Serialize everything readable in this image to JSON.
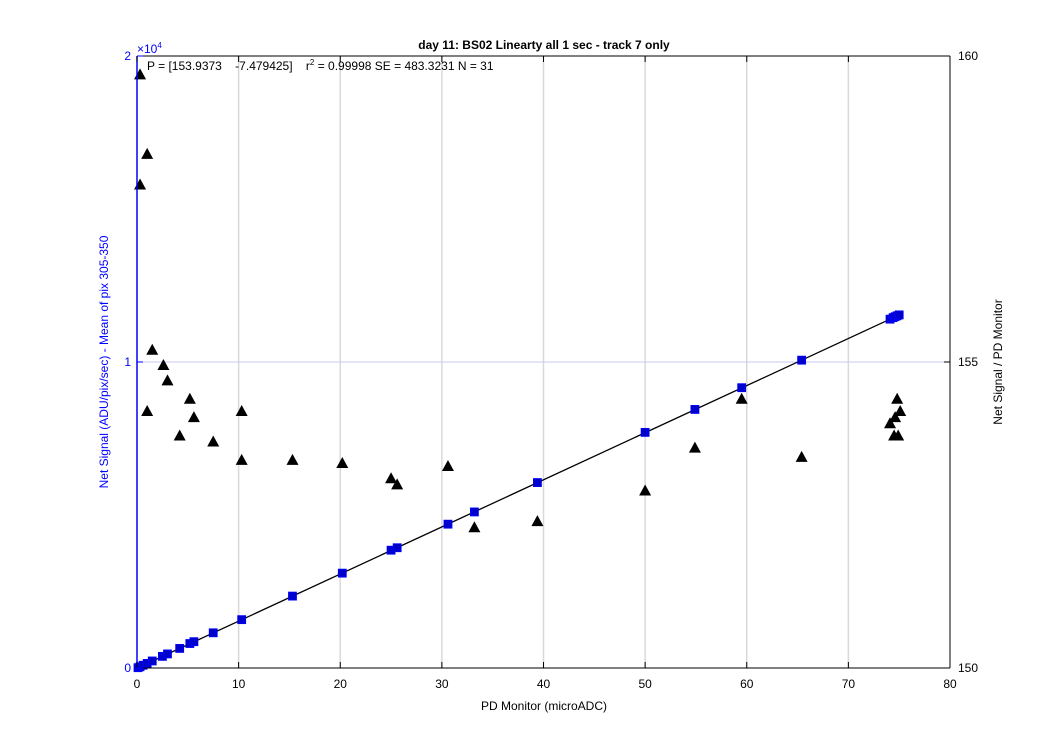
{
  "chart_data": {
    "type": "scatter",
    "title": "day 11: BS02   Linearty all 1 sec - track 7 only",
    "annotation": {
      "p_text": "P = [153.9373    -7.479425]",
      "r_prefix": "r",
      "r_exp": "2",
      "r_text": " = 0.99998 SE = 483.3231 N = 31"
    },
    "xlabel": "PD Monitor (microADC)",
    "ylabel_left": "Net Signal (ADU/pix/sec) - Mean of pix 305-350",
    "ylabel_right": "Net Signal / PD Monitor",
    "xlim": [
      0,
      80
    ],
    "ylim_left": [
      0,
      20000
    ],
    "ylim_right": [
      150,
      160
    ],
    "x_ticks": [
      "0",
      "10",
      "20",
      "30",
      "40",
      "50",
      "60",
      "70",
      "80"
    ],
    "y_left_ticks": [
      "0",
      "1",
      "2"
    ],
    "y_left_multiplier_base": "×10",
    "y_left_multiplier_exp": "4",
    "y_right_ticks": [
      "150",
      "155",
      "160"
    ],
    "fit": {
      "slope": 153.9373,
      "intercept": -7.479425
    },
    "colors": {
      "left_axis": "#0000ff",
      "signal_marker": "#0000cc",
      "ratio_marker": "#000000",
      "fit_line": "#000000"
    },
    "series": [
      {
        "axis": "left",
        "marker": "square",
        "x": [
          0.1,
          0.3,
          0.6,
          1.0,
          1.5,
          2.5,
          3.0,
          4.2,
          5.2,
          5.6,
          7.5,
          10.3,
          15.3,
          20.2,
          25.0,
          25.6,
          30.6,
          33.2,
          39.4,
          50.0,
          54.9,
          59.5,
          65.4,
          74.1,
          74.4,
          74.6,
          74.8,
          75.0
        ],
        "y": [
          10,
          40,
          90,
          150,
          230,
          380,
          460,
          640,
          800,
          860,
          1150,
          1580,
          2350,
          3100,
          3850,
          3930,
          4700,
          5100,
          6060,
          7700,
          8450,
          9160,
          10060,
          11400,
          11450,
          11480,
          11510,
          11540
        ]
      },
      {
        "axis": "right",
        "marker": "triangle",
        "x": [
          0.3,
          0.3,
          1.0,
          1.0,
          1.5,
          2.6,
          3.0,
          4.2,
          5.2,
          5.6,
          7.5,
          10.3,
          10.3,
          15.3,
          20.2,
          25.0,
          25.6,
          30.6,
          33.2,
          39.4,
          50.0,
          54.9,
          59.5,
          65.4,
          74.1,
          74.5,
          74.6,
          74.8,
          74.9,
          75.1
        ],
        "y": [
          159.7,
          157.9,
          158.4,
          154.2,
          155.2,
          154.95,
          154.7,
          153.8,
          154.4,
          154.1,
          153.7,
          154.2,
          153.4,
          153.4,
          153.35,
          153.1,
          153.0,
          153.3,
          152.3,
          152.4,
          152.9,
          153.6,
          154.4,
          153.45,
          154.0,
          153.8,
          154.1,
          154.4,
          153.8,
          154.2
        ]
      }
    ]
  }
}
